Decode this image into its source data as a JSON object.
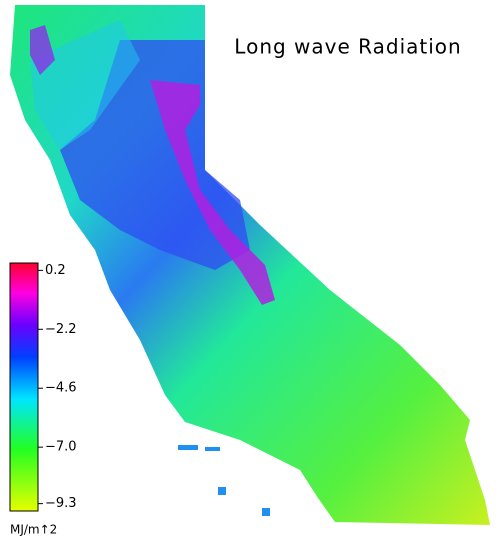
{
  "title": "Long wave Radiation",
  "colorbar": {
    "lim": [
      -9.6,
      0.5
    ],
    "ticks": [
      0.2,
      {
        "value": -2.2,
        "label": "−2.2"
      },
      {
        "value": -4.6,
        "label": "−4.6"
      },
      {
        "value": -7.0,
        "label": "−7.0"
      },
      {
        "value": -9.3,
        "label": "−9.3"
      }
    ],
    "unit": "MJ/m↑2"
  }
}
